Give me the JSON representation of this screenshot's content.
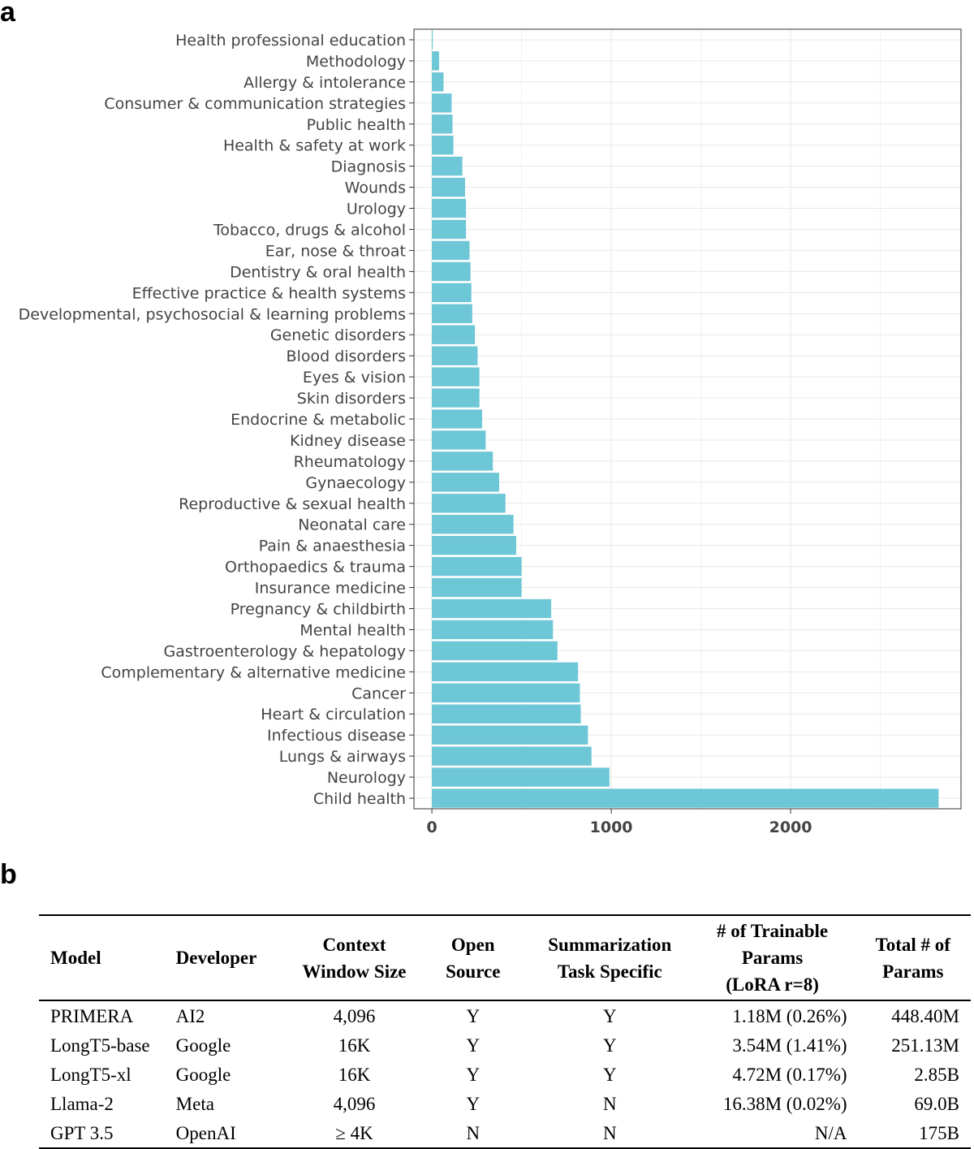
{
  "panels": {
    "a": "a",
    "b": "b"
  },
  "chart_data": {
    "type": "bar",
    "orientation": "horizontal",
    "categories": [
      "Health professional education",
      "Methodology",
      "Allergy & intolerance",
      "Consumer & communication strategies",
      "Public health",
      "Health & safety at work",
      "Diagnosis",
      "Wounds",
      "Urology",
      "Tobacco, drugs & alcohol",
      "Ear, nose & throat",
      "Dentistry & oral health",
      "Effective practice & health systems",
      "Developmental, psychosocial & learning problems",
      "Genetic disorders",
      "Blood disorders",
      "Eyes & vision",
      "Skin disorders",
      "Endocrine & metabolic",
      "Kidney disease",
      "Rheumatology",
      "Gynaecology",
      "Reproductive & sexual health",
      "Neonatal care",
      "Pain & anaesthesia",
      "Orthopaedics & trauma",
      "Insurance medicine",
      "Pregnancy & childbirth",
      "Mental health",
      "Gastroenterology & hepatology",
      "Complementary & alternative medicine",
      "Cancer",
      "Heart & circulation",
      "Infectious disease",
      "Lungs & airways",
      "Neurology",
      "Child health"
    ],
    "values": [
      5,
      40,
      65,
      110,
      115,
      120,
      170,
      185,
      190,
      190,
      210,
      215,
      220,
      225,
      240,
      255,
      265,
      265,
      280,
      300,
      340,
      375,
      410,
      455,
      470,
      500,
      500,
      665,
      675,
      700,
      815,
      825,
      830,
      870,
      890,
      990,
      2825
    ],
    "xticks": [
      0,
      1000,
      2000
    ],
    "xlim": [
      -100,
      2950
    ],
    "bar_color": "#6dc7d6",
    "grid": true,
    "title": "",
    "xlabel": "",
    "ylabel": ""
  },
  "table": {
    "headers": [
      [
        "Model"
      ],
      [
        "Developer"
      ],
      [
        "Context",
        "Window Size"
      ],
      [
        "Open",
        "Source"
      ],
      [
        "Summarization",
        "Task Specific"
      ],
      [
        "# of Trainable",
        "Params",
        "(LoRA r=8)"
      ],
      [
        "Total # of",
        "Params"
      ]
    ],
    "rows": [
      [
        "PRIMERA",
        "AI2",
        "4,096",
        "Y",
        "Y",
        "1.18M (0.26%)",
        "448.40M"
      ],
      [
        "LongT5-base",
        "Google",
        "16K",
        "Y",
        "Y",
        "3.54M (1.41%)",
        "251.13M"
      ],
      [
        "LongT5-xl",
        "Google",
        "16K",
        "Y",
        "Y",
        "4.72M (0.17%)",
        "2.85B"
      ],
      [
        "Llama-2",
        "Meta",
        "4,096",
        "Y",
        "N",
        "16.38M (0.02%)",
        "69.0B"
      ],
      [
        "GPT 3.5",
        "OpenAI",
        "≥ 4K",
        "N",
        "N",
        "N/A",
        "175B"
      ]
    ]
  }
}
